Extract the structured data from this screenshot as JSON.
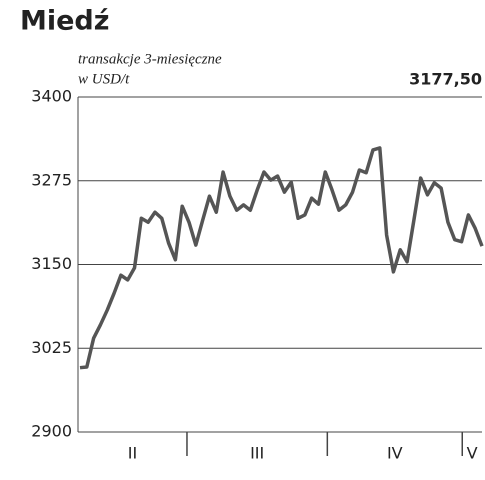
{
  "chart_data": {
    "type": "line",
    "title": "Miedź",
    "subtitle": [
      "transakcje 3-miesięczne",
      "w USD/t"
    ],
    "current_label": "3177,50",
    "values": [
      2996,
      2997,
      3040,
      3060,
      3082,
      3107,
      3134,
      3127,
      3145,
      3219,
      3213,
      3228,
      3219,
      3182,
      3157,
      3237,
      3213,
      3179,
      3216,
      3252,
      3228,
      3288,
      3252,
      3231,
      3239,
      3231,
      3261,
      3288,
      3276,
      3282,
      3258,
      3273,
      3219,
      3224,
      3249,
      3240,
      3288,
      3261,
      3231,
      3239,
      3258,
      3291,
      3287,
      3321,
      3324,
      3194,
      3139,
      3172,
      3154,
      3216,
      3279,
      3254,
      3272,
      3264,
      3213,
      3187,
      3184,
      3224,
      3204,
      3177.5
    ],
    "color": "#555555",
    "ylim": [
      2900,
      3400
    ],
    "yticks": [
      3400,
      3275,
      3150,
      3025,
      2900
    ],
    "grid": true,
    "month_labels": [
      "II",
      "III",
      "IV",
      "V"
    ],
    "month_boundaries": [
      15.7,
      36.3,
      56.1
    ]
  }
}
